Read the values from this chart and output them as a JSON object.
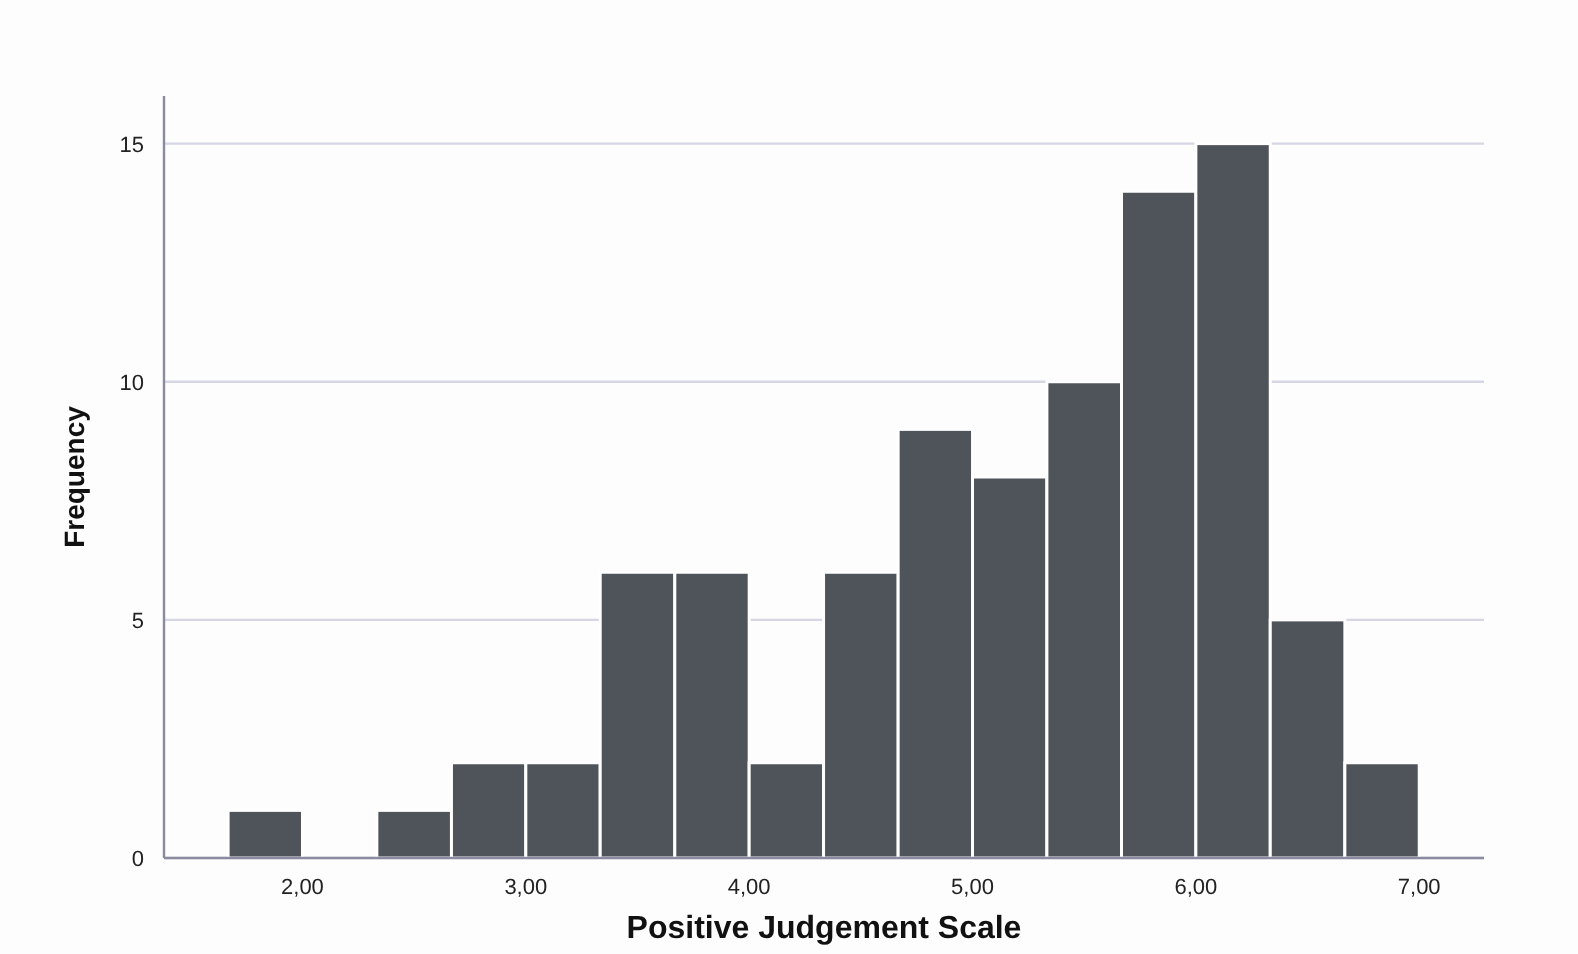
{
  "chart_data": {
    "type": "histogram",
    "xlabel": "Positive Judgement Scale",
    "ylabel": "Frequency",
    "bins": [
      1.667,
      2,
      2.333,
      2.667,
      3,
      3.333,
      3.667,
      4,
      4.333,
      4.667,
      5,
      5.333,
      5.667,
      6,
      6.333,
      6.667,
      7
    ],
    "values": [
      1,
      0,
      1,
      2,
      2,
      6,
      6,
      2,
      6,
      9,
      8,
      10,
      14,
      15,
      5,
      2
    ],
    "color": "#4f535a",
    "xlim": [
      1.38,
      7.29
    ],
    "xticks": [
      {
        "value": 2,
        "label": "2,00"
      },
      {
        "value": 3,
        "label": "3,00"
      },
      {
        "value": 4,
        "label": "4,00"
      },
      {
        "value": 5,
        "label": "5,00"
      },
      {
        "value": 6,
        "label": "6,00"
      },
      {
        "value": 7,
        "label": "7,00"
      }
    ],
    "ylim": [
      0,
      16
    ],
    "yticks": [
      0,
      5,
      10,
      15
    ],
    "grid": "y"
  }
}
